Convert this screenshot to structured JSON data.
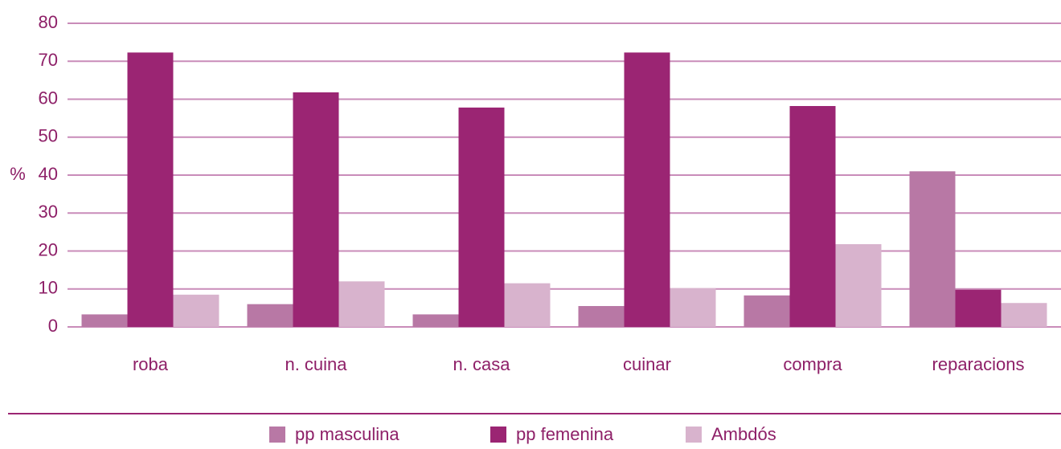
{
  "chart_data": {
    "type": "bar",
    "y_label": "%",
    "categories": [
      "roba",
      "n. cuina",
      "n. casa",
      "cuinar",
      "compra",
      "reparacions"
    ],
    "series": [
      {
        "name": "pp masculina",
        "color": "#b878a5",
        "values": [
          3.3,
          6,
          3.3,
          5.5,
          8.3,
          41
        ]
      },
      {
        "name": "pp femenina",
        "color": "#9b2573",
        "values": [
          72.3,
          61.8,
          57.8,
          72.3,
          58.2,
          9.8
        ]
      },
      {
        "name": "Ambdós",
        "color": "#d8b3cd",
        "values": [
          8.5,
          12,
          11.5,
          10.2,
          21.8,
          6.3
        ]
      }
    ],
    "ylim": [
      0,
      80
    ],
    "yticks": [
      0,
      10,
      20,
      30,
      40,
      50,
      60,
      70,
      80
    ],
    "grid": true,
    "legend": "bottom"
  }
}
